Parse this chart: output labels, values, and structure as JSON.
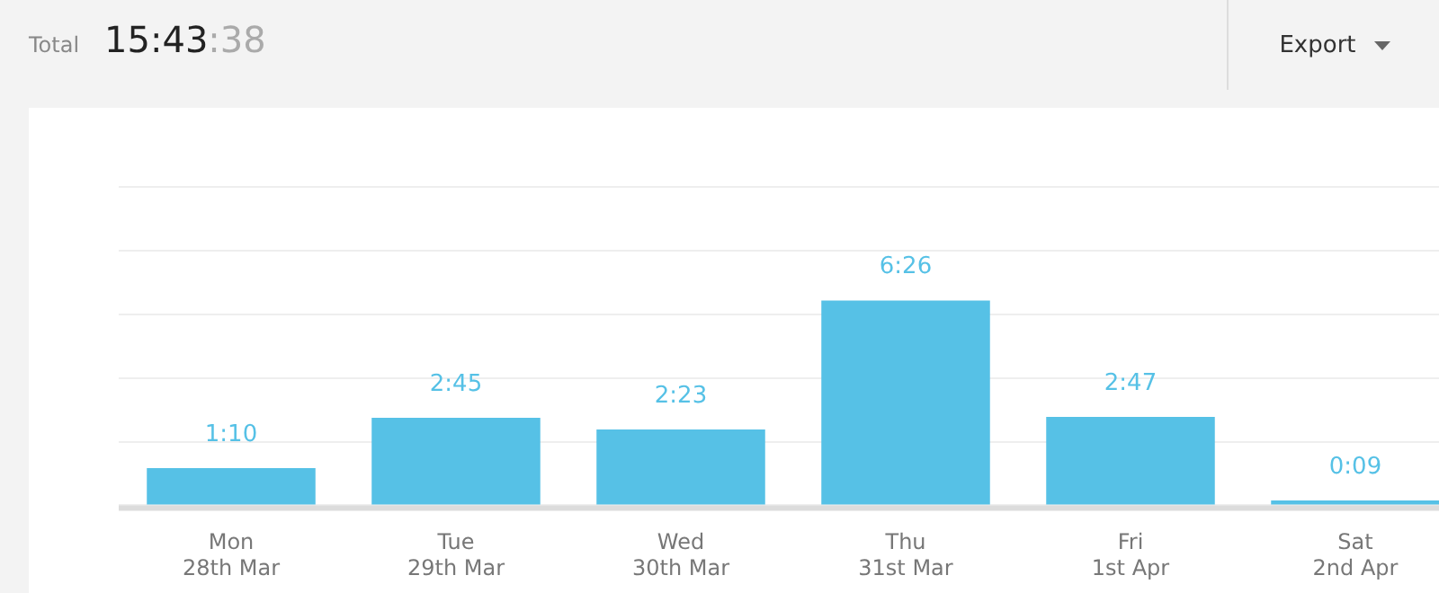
{
  "chart_data": {
    "type": "bar",
    "title": "Total",
    "subtitle": "15:43:38",
    "annotations": [
      "Export"
    ],
    "categories": [
      "Mon\n28th Mar",
      "Tue\n29th Mar",
      "Wed\n30th Mar",
      "Thu\n31st Mar",
      "Fri\n1st Apr",
      "Sat\n2nd Apr"
    ],
    "values": [
      1.17,
      2.75,
      2.38,
      6.43,
      2.78,
      0.15
    ],
    "value_labels": [
      "1:10",
      "2:45",
      "2:23",
      "6:26",
      "2:47",
      "0:09"
    ],
    "color": "#56c1e6",
    "ylim": [
      0,
      10
    ],
    "yticks": [
      {
        "value": 0,
        "label": null
      },
      {
        "value": 2,
        "label": null
      },
      {
        "value": 4,
        "label": null
      },
      {
        "value": 6,
        "label": null
      },
      {
        "value": 8,
        "label": null
      },
      {
        "value": 10,
        "label": null
      }
    ],
    "grid": "y",
    "tick_labels": "x",
    "legend": false
  }
}
